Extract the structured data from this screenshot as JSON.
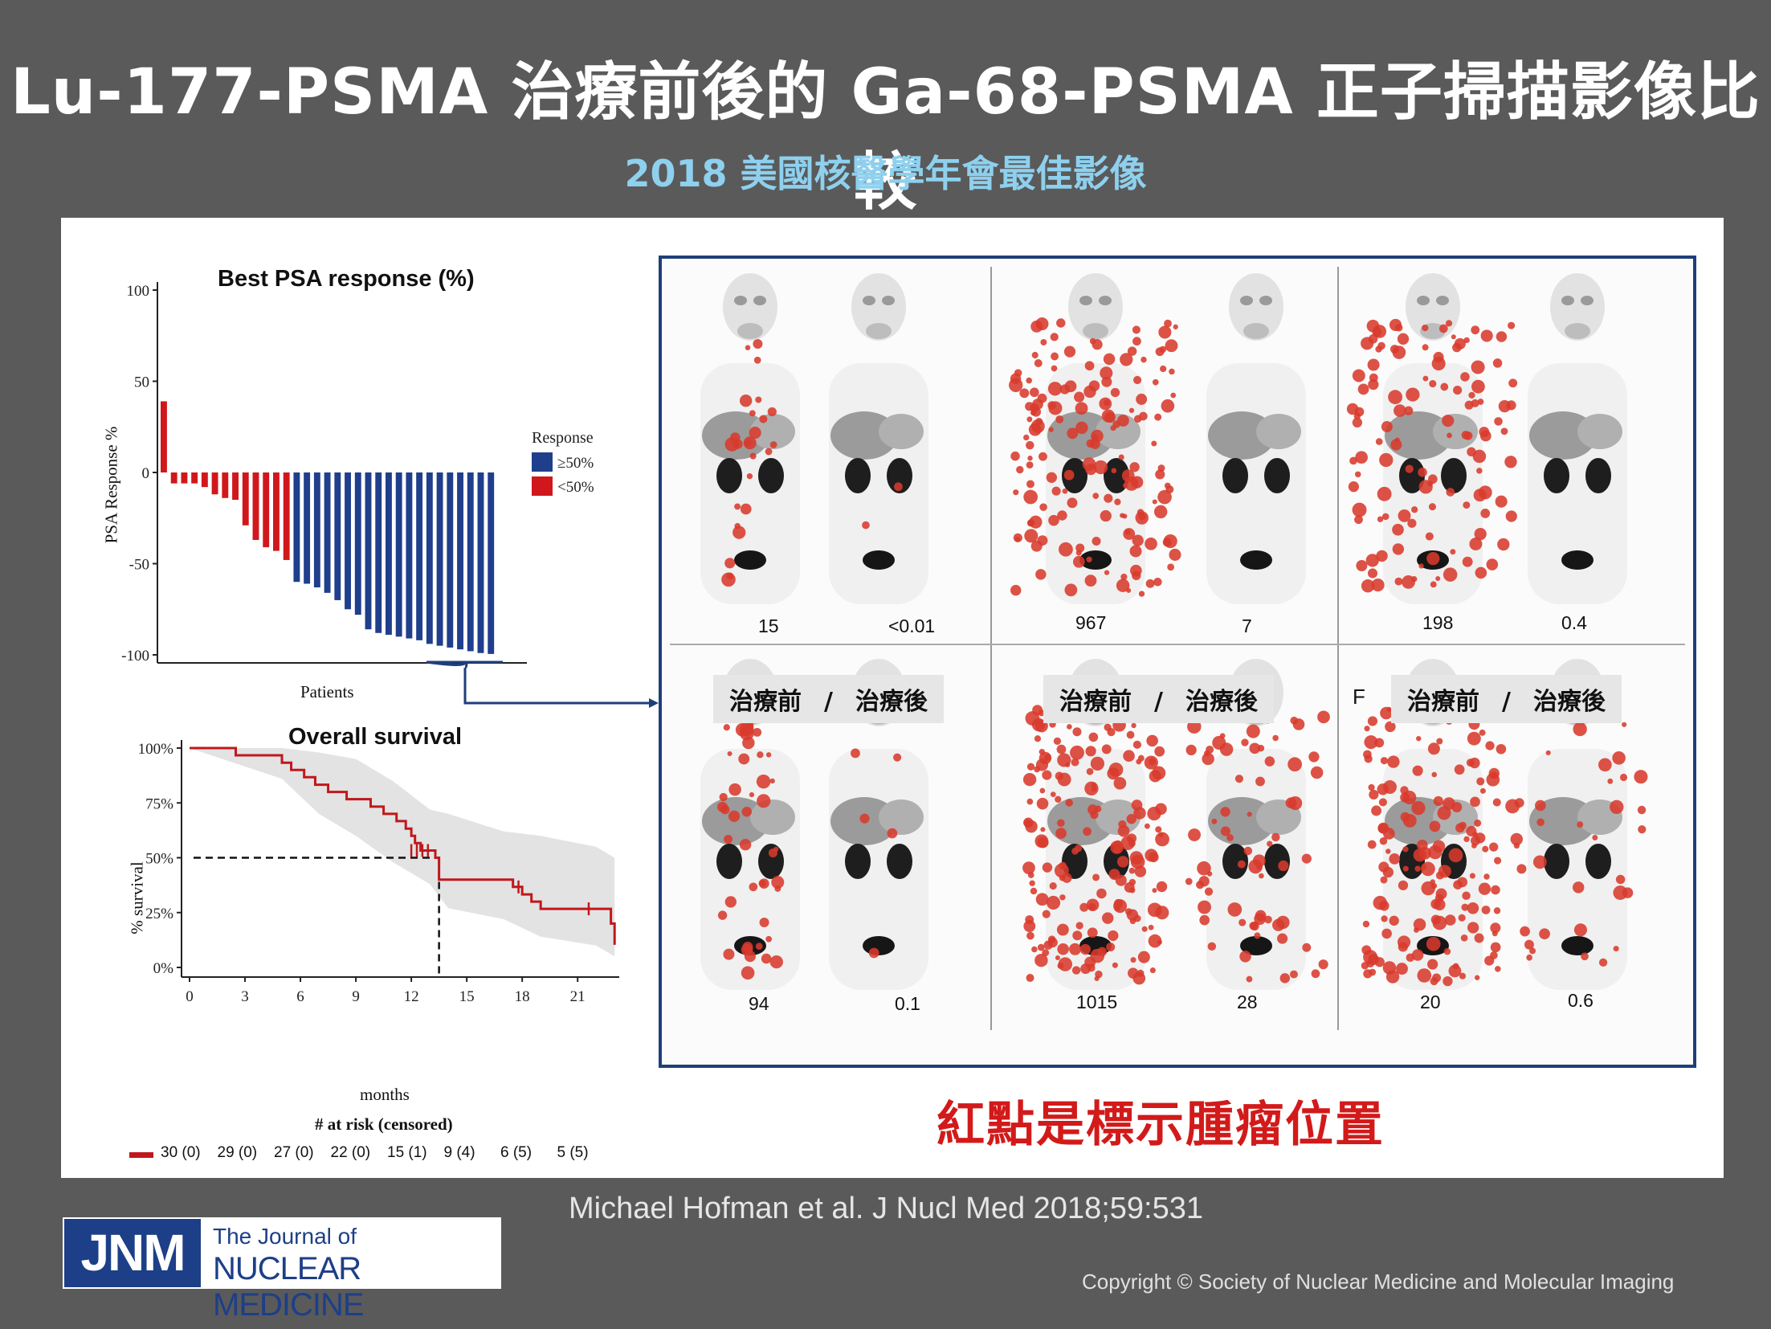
{
  "header": {
    "title": "Lu-177-PSMA 治療前後的 Ga-68-PSMA 正子掃描影像比較",
    "subtitle": "2018 美國核醫學年會最佳影像"
  },
  "colors": {
    "responder": "#1f3f8c",
    "non_responder": "#d0181c",
    "survival_line": "#c0181c",
    "frame": "#1f3f7a",
    "tumor": "#d83a2c"
  },
  "chart_data": [
    {
      "type": "bar",
      "title": "Best PSA response (%)",
      "xlabel": "Patients",
      "ylabel": "PSA Response %",
      "ylim": [
        -100,
        100
      ],
      "yticks": [
        "100",
        "50",
        "0",
        "-50",
        "-100"
      ],
      "legend": {
        "title": "Response",
        "placement": "right",
        "entries": [
          "≥50%",
          "<50%"
        ]
      },
      "series": [
        {
          "name": "≥50%",
          "values": [
            -60,
            -61,
            -63,
            -66,
            -70,
            -75,
            -78,
            -86,
            -88,
            -89,
            -90,
            -91,
            -92,
            -94,
            -95,
            -96,
            -97,
            -98,
            -99,
            -99.5
          ]
        },
        {
          "name": "<50%",
          "values": [
            39,
            -6,
            -6,
            -6,
            -8,
            -12,
            -14,
            -15,
            -29,
            -37,
            -41,
            -43,
            -48
          ]
        }
      ],
      "order": [
        39,
        -6,
        -6,
        -6,
        -8,
        -12,
        -14,
        -15,
        -29,
        -37,
        -41,
        -43,
        -48,
        -60,
        -61,
        -63,
        -66,
        -70,
        -75,
        -78,
        -86,
        -88,
        -89,
        -90,
        -91,
        -92,
        -94,
        -95,
        -96,
        -97,
        -98,
        -99,
        -99.5
      ],
      "threshold": -50
    },
    {
      "type": "line",
      "title": "Overall survival",
      "xlabel": "months",
      "ylabel": "% survival",
      "xlim": [
        0,
        23
      ],
      "ylim": [
        0,
        1
      ],
      "xticks": [
        "0",
        "3",
        "6",
        "9",
        "12",
        "15",
        "18",
        "21"
      ],
      "yticks": [
        "100%",
        "75%",
        "50%",
        "25%",
        "0%"
      ],
      "median_months": 13.5,
      "km_steps": [
        [
          0,
          1.0
        ],
        [
          2.5,
          0.967
        ],
        [
          5.0,
          0.933
        ],
        [
          5.5,
          0.9
        ],
        [
          6.2,
          0.867
        ],
        [
          6.8,
          0.833
        ],
        [
          7.5,
          0.8
        ],
        [
          8.5,
          0.767
        ],
        [
          9.8,
          0.733
        ],
        [
          10.5,
          0.7
        ],
        [
          11.2,
          0.667
        ],
        [
          11.7,
          0.633
        ],
        [
          12.0,
          0.6
        ],
        [
          12.2,
          0.567
        ],
        [
          12.5,
          0.533
        ],
        [
          13.3,
          0.5
        ],
        [
          13.5,
          0.4
        ],
        [
          17.5,
          0.367
        ],
        [
          18.0,
          0.333
        ],
        [
          18.5,
          0.3
        ],
        [
          19.0,
          0.267
        ],
        [
          22.8,
          0.2
        ],
        [
          23.0,
          0.133
        ]
      ],
      "ci_upper": [
        [
          0,
          1.0
        ],
        [
          5,
          1.0
        ],
        [
          7,
          0.98
        ],
        [
          9,
          0.95
        ],
        [
          11,
          0.85
        ],
        [
          13,
          0.72
        ],
        [
          14,
          0.7
        ],
        [
          17,
          0.62
        ],
        [
          19,
          0.6
        ],
        [
          22,
          0.55
        ],
        [
          23,
          0.5
        ]
      ],
      "ci_lower": [
        [
          0,
          1.0
        ],
        [
          5,
          0.86
        ],
        [
          7,
          0.7
        ],
        [
          9,
          0.6
        ],
        [
          11,
          0.48
        ],
        [
          13,
          0.38
        ],
        [
          14,
          0.27
        ],
        [
          17,
          0.22
        ],
        [
          19,
          0.14
        ],
        [
          22,
          0.1
        ],
        [
          23,
          0.05
        ]
      ],
      "censor_marks": [
        [
          12.0,
          0.533
        ],
        [
          12.3,
          0.533
        ],
        [
          12.6,
          0.533
        ],
        [
          12.9,
          0.533
        ],
        [
          17.8,
          0.367
        ],
        [
          21.6,
          0.267
        ]
      ],
      "risk_table": {
        "title": "# at risk (censored)",
        "values": [
          "30 (0)",
          "29 (0)",
          "27 (0)",
          "22 (0)",
          "15 (1)",
          "9 (4)",
          "6 (5)",
          "5 (5)"
        ]
      }
    }
  ],
  "scans": {
    "label_before": "治療前",
    "label_sep": "/",
    "label_after": "治療後",
    "top_values": [
      "15",
      "<0.01",
      "967",
      "7",
      "198",
      "0.4"
    ],
    "bottom_values": [
      "94",
      "0.1",
      "1015",
      "28",
      "20",
      "0.6"
    ],
    "marker_f": "F"
  },
  "note": "紅點是標示腫瘤位置",
  "citation": "Michael Hofman et al. J Nucl Med 2018;59:531",
  "copyright": "Copyright © Society of Nuclear Medicine and Molecular Imaging",
  "logo": {
    "abbr": "JNM",
    "line1": "The Journal of",
    "line2": "NUCLEAR MEDICINE"
  }
}
